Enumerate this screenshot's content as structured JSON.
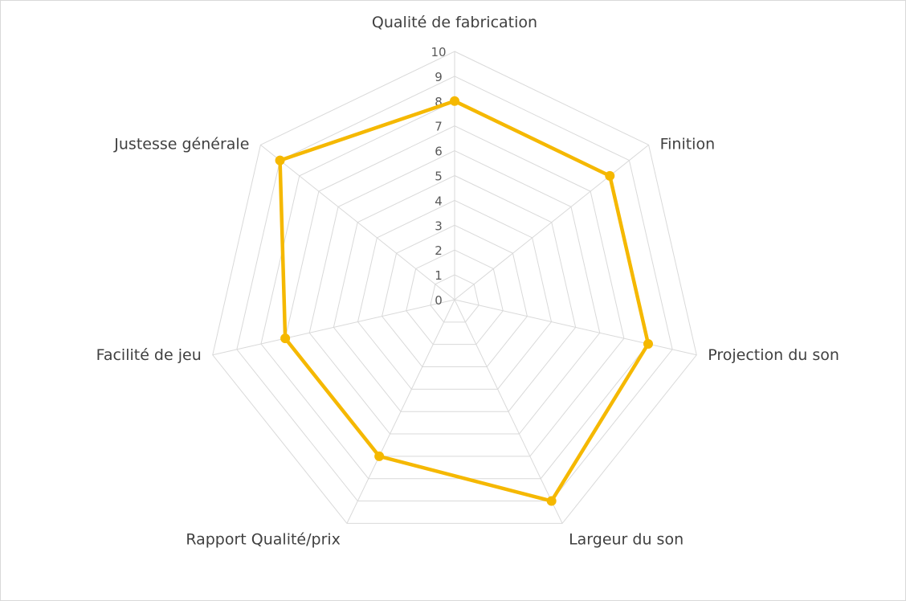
{
  "chart_data": {
    "type": "radar",
    "categories": [
      "Qualité de fabrication",
      "Finition",
      "Projection du son",
      "Largeur du son",
      "Rapport Qualité/prix",
      "Facilité de jeu",
      "Justesse générale"
    ],
    "series": [
      {
        "values": [
          8,
          8,
          8,
          9,
          7,
          7,
          9
        ]
      }
    ],
    "rlim": [
      0,
      10
    ],
    "ticks": [
      "0",
      "1",
      "2",
      "3",
      "4",
      "5",
      "6",
      "7",
      "8",
      "9",
      "10"
    ],
    "grid": true,
    "legend": "none",
    "colors": {
      "series": "#f5b800",
      "grid": "#d9d9d9"
    }
  }
}
